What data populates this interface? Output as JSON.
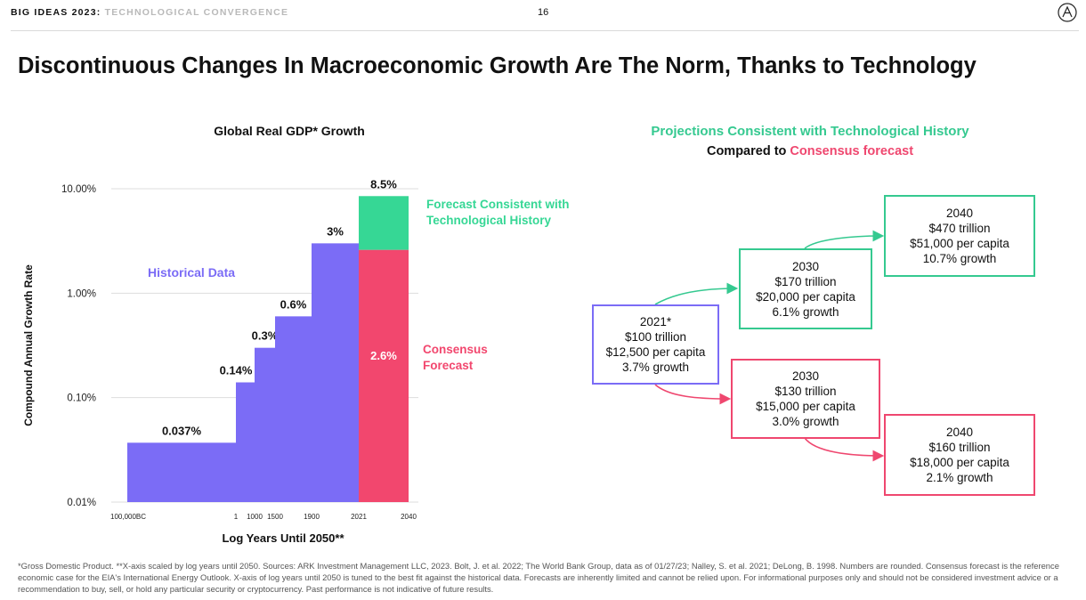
{
  "header": {
    "series_title": "BIG IDEAS 2023:",
    "series_subtitle": "TECHNOLOGICAL CONVERGENCE",
    "page_number": "16"
  },
  "title": "Discontinuous Changes In Macroeconomic Growth Are The Norm, Thanks to Technology",
  "chart_data": {
    "type": "bar",
    "title": "Global Real GDP* Growth",
    "xlabel": "Log Years Until 2050**",
    "ylabel": "Compound Annual Growth Rate",
    "yscale": "log",
    "ylim": [
      0.01,
      10
    ],
    "yticks": [
      {
        "value": 10,
        "label": "10.00%"
      },
      {
        "value": 1,
        "label": "1.00%"
      },
      {
        "value": 0.1,
        "label": "0.10%"
      },
      {
        "value": 0.01,
        "label": "0.01%"
      }
    ],
    "xticks": [
      "100,000BC",
      "1",
      "1000",
      "1500",
      "1900",
      "2021",
      "2040"
    ],
    "bars": [
      {
        "from": "100,000BC",
        "to": "1",
        "value": 0.037,
        "label": "0.037%",
        "series": "historical"
      },
      {
        "from": "1",
        "to": "1000",
        "value": 0.14,
        "label": "0.14%",
        "series": "historical"
      },
      {
        "from": "1000",
        "to": "1500",
        "value": 0.3,
        "label": "0.3%",
        "series": "historical"
      },
      {
        "from": "1500",
        "to": "1900",
        "value": 0.6,
        "label": "0.6%",
        "series": "historical"
      },
      {
        "from": "1900",
        "to": "2021",
        "value": 3,
        "label": "3%",
        "series": "historical"
      },
      {
        "from": "2021",
        "to": "2040",
        "value": 2.6,
        "label": "2.6%",
        "series": "consensus"
      },
      {
        "from": "2021",
        "to": "2040",
        "value": 8.5,
        "label": "8.5%",
        "series": "technological"
      }
    ],
    "annotations": {
      "historical": "Historical Data",
      "technological": "Forecast Consistent with Technological History",
      "consensus": "Consensus Forecast"
    },
    "colors": {
      "historical": "#7b6cf6",
      "consensus": "#f2476e",
      "technological": "#36d795",
      "grid": "#dddddd"
    },
    "grid": true
  },
  "projections": {
    "title": "Projections Consistent with Technological History",
    "subtitle_prefix": "Compared to",
    "subtitle_highlight": "Consensus forecast",
    "boxes": {
      "start": {
        "year": "2021*",
        "gdp": "$100 trillion",
        "per_capita": "$12,500 per capita",
        "growth": "3.7% growth"
      },
      "tech_2030": {
        "year": "2030",
        "gdp": "$170 trillion",
        "per_capita": "$20,000 per capita",
        "growth": "6.1% growth"
      },
      "tech_2040": {
        "year": "2040",
        "gdp": "$470 trillion",
        "per_capita": "$51,000 per capita",
        "growth": "10.7% growth"
      },
      "cons_2030": {
        "year": "2030",
        "gdp": "$130 trillion",
        "per_capita": "$15,000 per capita",
        "growth": "3.0% growth"
      },
      "cons_2040": {
        "year": "2040",
        "gdp": "$160 trillion",
        "per_capita": "$18,000 per capita",
        "growth": "2.1% growth"
      }
    },
    "colors": {
      "technological": "#35c990",
      "consensus": "#ef476f",
      "start": "#7b6cf6"
    }
  },
  "footnote": "*Gross Domestic Product. **X-axis scaled by log years until 2050. Sources: ARK Investment Management LLC, 2023. Bolt, J. et al. 2022; The World Bank Group, data as of 01/27/23; Nalley, S. et al. 2021; DeLong, B. 1998. Numbers are rounded. Consensus forecast is the reference economic case for the EIA's International Energy Outlook. X-axis of log years until 2050 is tuned to the best fit against the historical data. Forecasts are inherently limited and cannot be relied upon. For informational purposes only and should not be considered investment advice or a recommendation to buy, sell, or hold any particular security or cryptocurrency. Past performance is not indicative of future results."
}
